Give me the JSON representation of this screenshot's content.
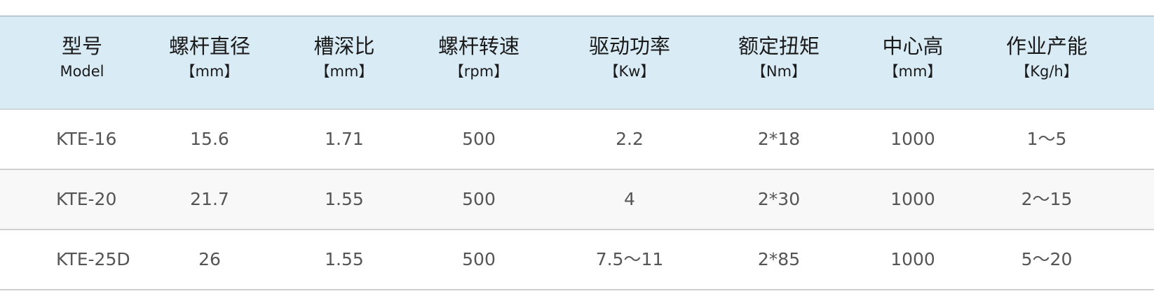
{
  "header": [
    {
      "title": "型号",
      "unit": "Model"
    },
    {
      "title": "螺杆直径",
      "unit": "【mm】"
    },
    {
      "title": "槽深比",
      "unit": "【mm】"
    },
    {
      "title": "螺杆转速",
      "unit": "【rpm】"
    },
    {
      "title": "驱动功率",
      "unit": "【Kw】"
    },
    {
      "title": "额定扭矩",
      "unit": "【Nm】"
    },
    {
      "title": "中心高",
      "unit": "【mm】"
    },
    {
      "title": "作业产能",
      "unit": "【Kg/h】"
    }
  ],
  "rows": [
    [
      "KTE-16",
      "15.6",
      "1.71",
      "500",
      "2.2",
      "2*18",
      "1000",
      "1～5"
    ],
    [
      "KTE-20",
      "21.7",
      "1.55",
      "500",
      "4",
      "2*30",
      "1000",
      "2～15"
    ],
    [
      "KTE-25D",
      "26",
      "1.55",
      "500",
      "7.5～11",
      "2*85",
      "1000",
      "5～20"
    ]
  ],
  "colors": {
    "header_bg": "#d9ebf5",
    "alt_row_bg": "#f8f8f8",
    "text": "#555555"
  }
}
